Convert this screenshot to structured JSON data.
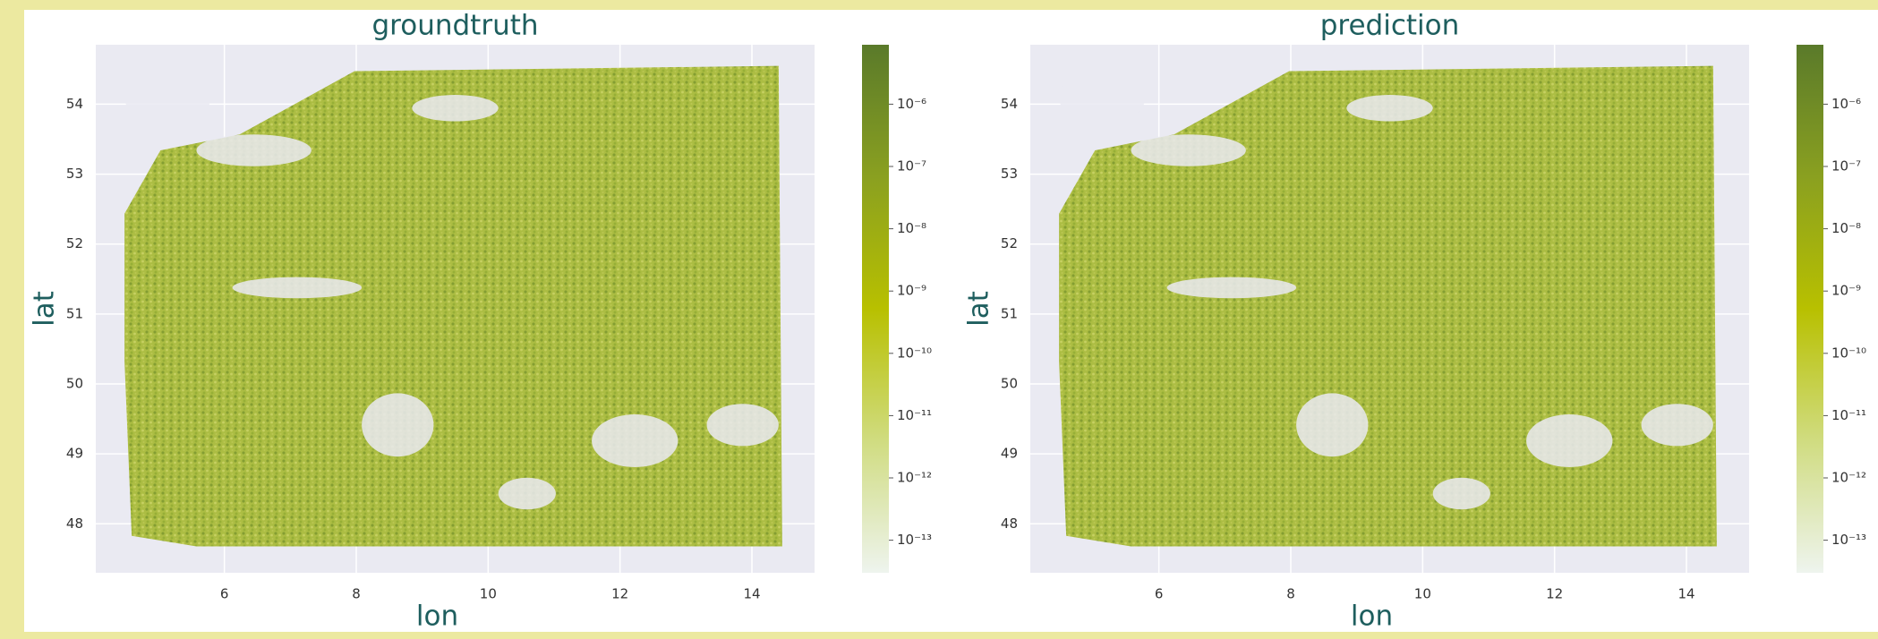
{
  "chart_data": [
    {
      "type": "scatter",
      "title": "groundtruth",
      "xlabel": "lon",
      "ylabel": "lat",
      "xlim": [
        4.05,
        14.95
      ],
      "xticks": [
        6,
        8,
        10,
        12,
        14
      ],
      "ylim": [
        47.3,
        54.85
      ],
      "yticks": [
        48,
        49,
        50,
        51,
        52,
        53,
        54
      ],
      "grid": true,
      "colorbar": {
        "log_scale": true,
        "clim": [
          9e-06,
          3e-14
        ],
        "ticks": [
          {
            "value": 1e-06,
            "label": "10⁻⁶"
          },
          {
            "value": 1e-07,
            "label": "10⁻⁷"
          },
          {
            "value": 1e-08,
            "label": "10⁻⁸"
          },
          {
            "value": 1e-09,
            "label": "10⁻⁹"
          },
          {
            "value": 1e-10,
            "label": "10⁻¹⁰"
          },
          {
            "value": 1e-11,
            "label": "10⁻¹¹"
          },
          {
            "value": 1e-12,
            "label": "10⁻¹²"
          },
          {
            "value": 1e-13,
            "label": "10⁻¹³"
          }
        ],
        "cmap_colors": [
          "#5a7a2a",
          "#8aa020",
          "#b8c000",
          "#d0dc80",
          "#eef4ee"
        ]
      }
    },
    {
      "type": "scatter",
      "title": "prediction",
      "xlabel": "lon",
      "ylabel": "lat",
      "xlim": [
        4.05,
        14.95
      ],
      "xticks": [
        6,
        8,
        10,
        12,
        14
      ],
      "ylim": [
        47.3,
        54.85
      ],
      "yticks": [
        48,
        49,
        50,
        51,
        52,
        53,
        54
      ],
      "grid": true,
      "colorbar": {
        "log_scale": true,
        "clim": [
          9e-06,
          3e-14
        ],
        "ticks": [
          {
            "value": 1e-06,
            "label": "10⁻⁶"
          },
          {
            "value": 1e-07,
            "label": "10⁻⁷"
          },
          {
            "value": 1e-08,
            "label": "10⁻⁸"
          },
          {
            "value": 1e-09,
            "label": "10⁻⁹"
          },
          {
            "value": 1e-10,
            "label": "10⁻¹⁰"
          },
          {
            "value": 1e-11,
            "label": "10⁻¹¹"
          },
          {
            "value": 1e-12,
            "label": "10⁻¹²"
          },
          {
            "value": 1e-13,
            "label": "10⁻¹³"
          }
        ],
        "cmap_colors": [
          "#5a7a2a",
          "#8aa020",
          "#b8c000",
          "#d0dc80",
          "#eef4ee"
        ]
      }
    }
  ]
}
